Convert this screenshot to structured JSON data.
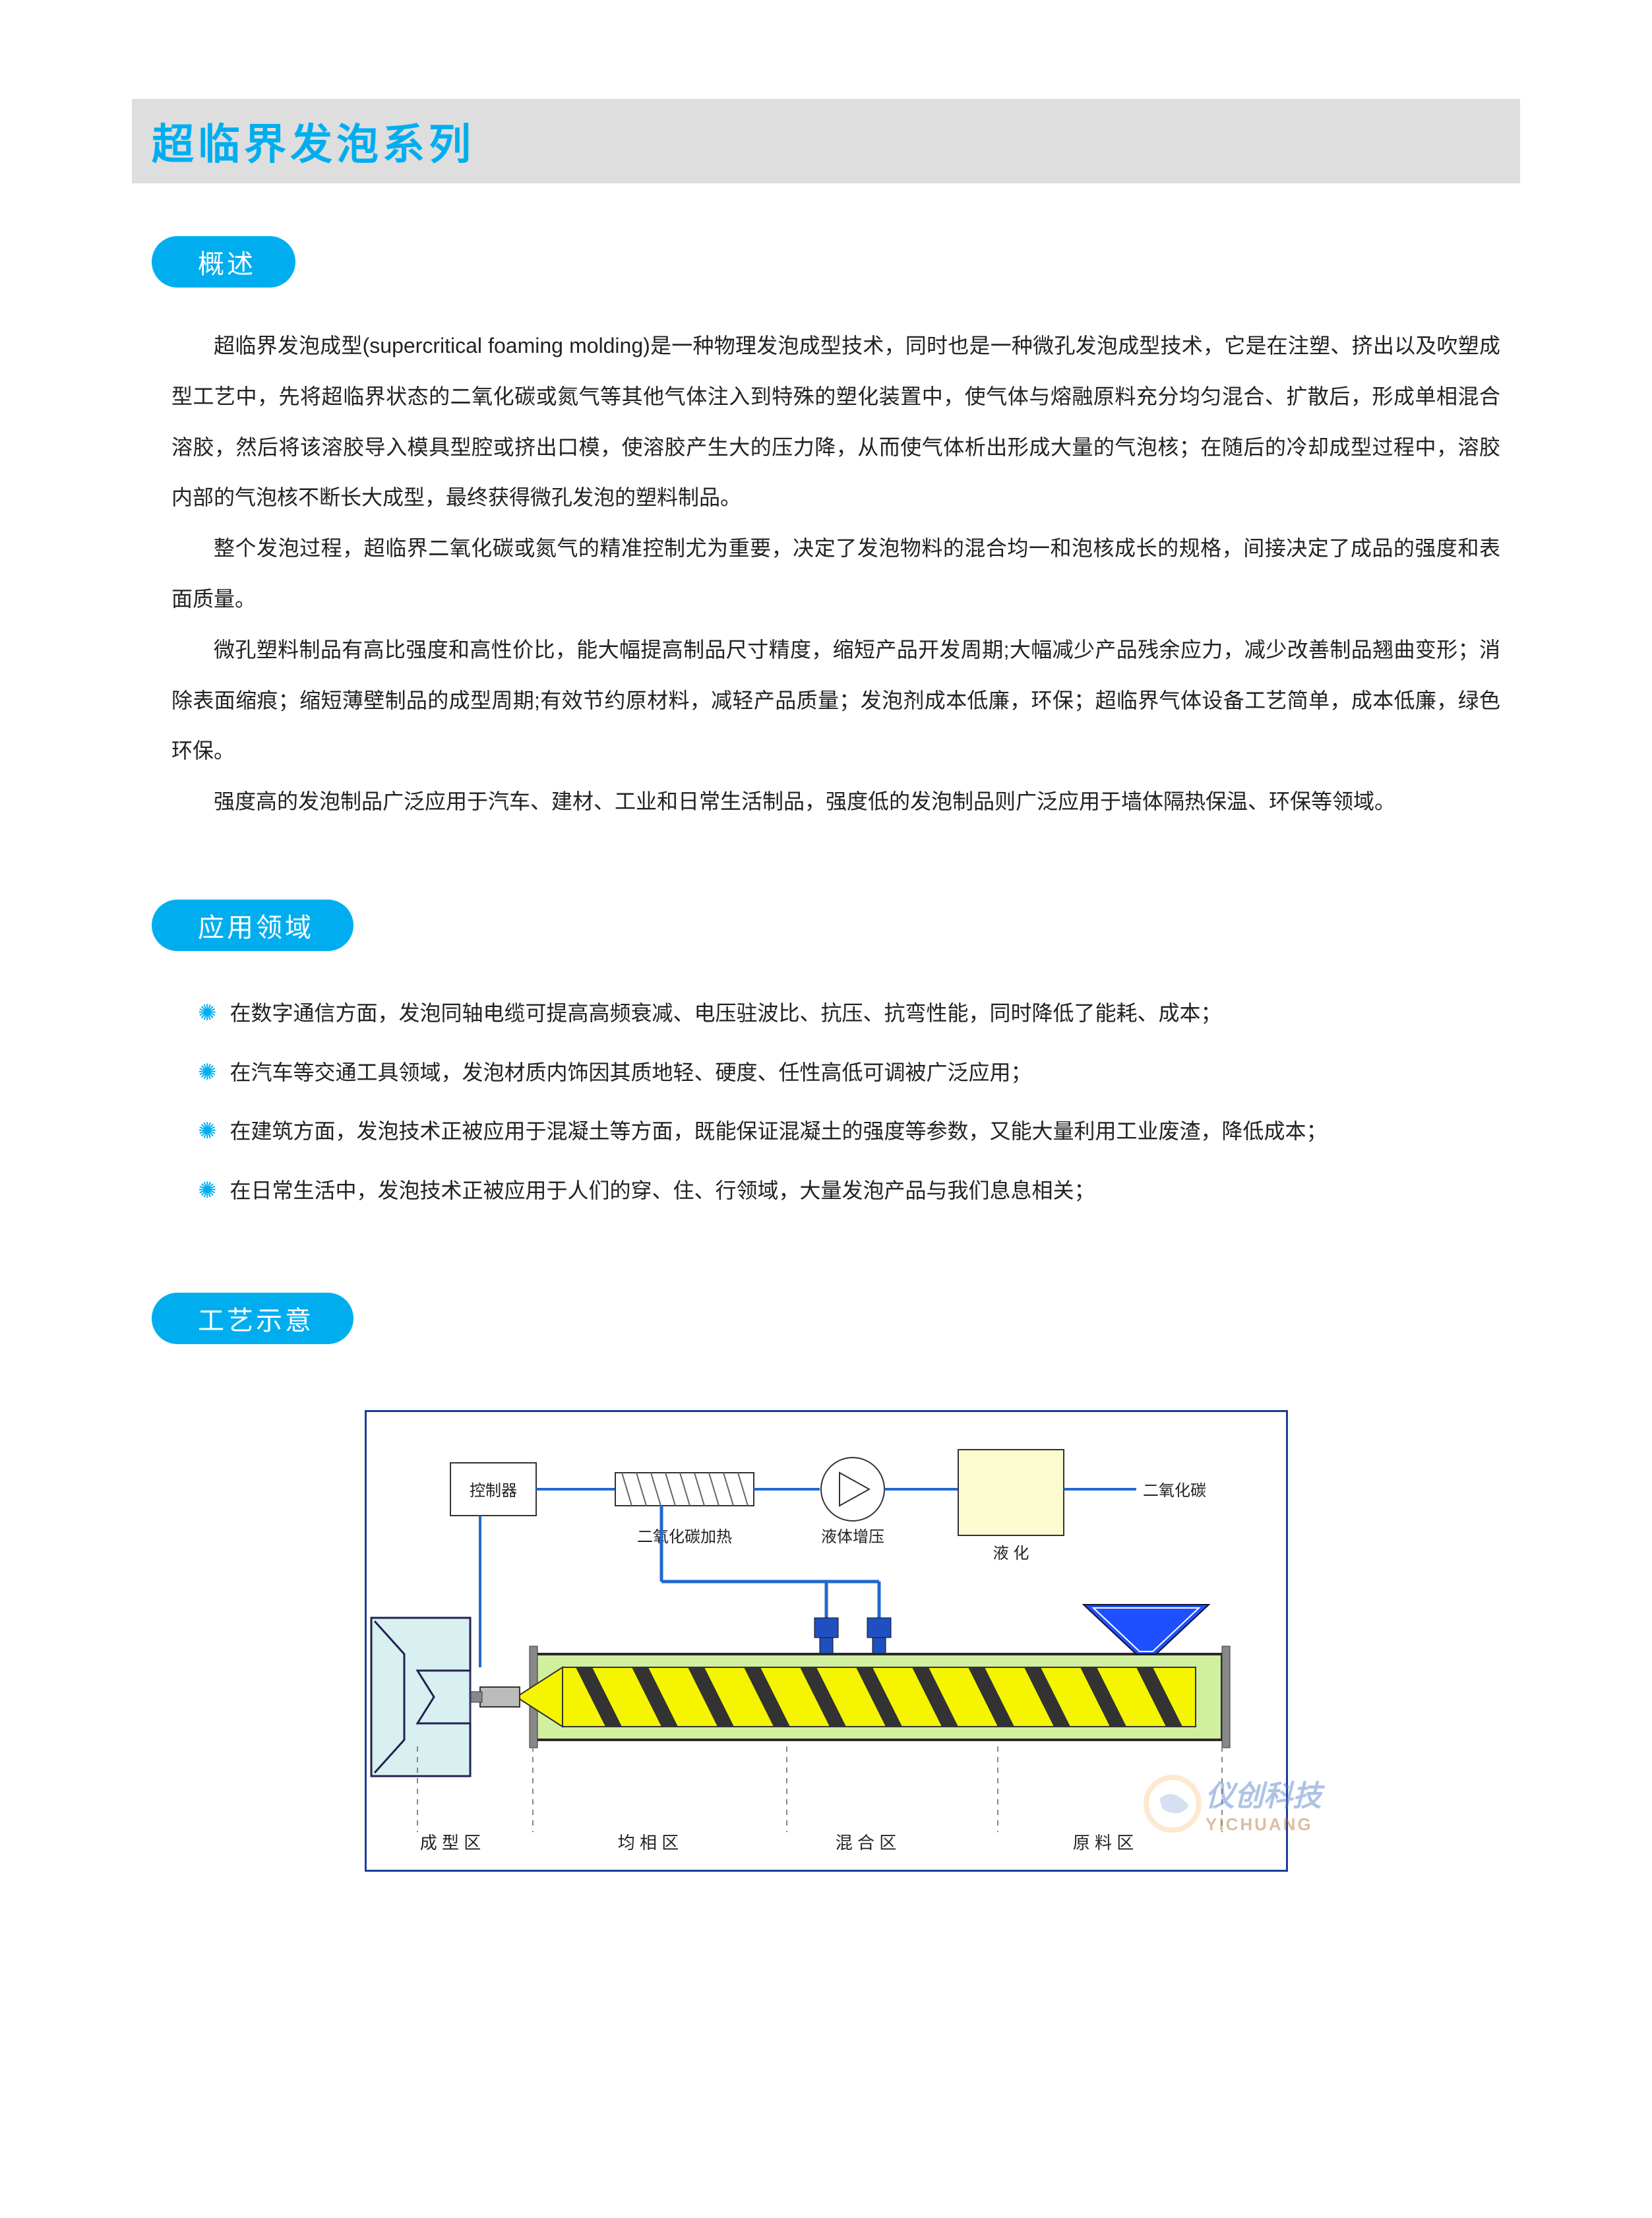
{
  "page": {
    "title": "超临界发泡系列",
    "title_color": "#00aef0",
    "title_bg": "#dedede"
  },
  "sections": {
    "overview": {
      "heading": "概述",
      "paragraphs": [
        "超临界发泡成型(supercritical foaming molding)是一种物理发泡成型技术，同时也是一种微孔发泡成型技术，它是在注塑、挤出以及吹塑成型工艺中，先将超临界状态的二氧化碳或氮气等其他气体注入到特殊的塑化装置中，使气体与熔融原料充分均匀混合、扩散后，形成单相混合溶胶，然后将该溶胶导入模具型腔或挤出口模，使溶胶产生大的压力降，从而使气体析出形成大量的气泡核；在随后的冷却成型过程中，溶胶内部的气泡核不断长大成型，最终获得微孔发泡的塑料制品。",
        "整个发泡过程，超临界二氧化碳或氮气的精准控制尤为重要，决定了发泡物料的混合均一和泡核成长的规格，间接决定了成品的强度和表面质量。",
        "微孔塑料制品有高比强度和高性价比，能大幅提高制品尺寸精度，缩短产品开发周期;大幅减少产品残余应力，减少改善制品翘曲变形；消除表面缩痕；缩短薄壁制品的成型周期;有效节约原材料，减轻产品质量；发泡剂成本低廉，环保；超临界气体设备工艺简单，成本低廉，绿色环保。",
        "强度高的发泡制品广泛应用于汽车、建材、工业和日常生活制品，强度低的发泡制品则广泛应用于墙体隔热保温、环保等领域。"
      ]
    },
    "applications": {
      "heading": "应用领域",
      "items": [
        "在数字通信方面，发泡同轴电缆可提高高频衰减、电压驻波比、抗压、抗弯性能，同时降低了能耗、成本；",
        "在汽车等交通工具领域，发泡材质内饰因其质地轻、硬度、任性高低可调被广泛应用；",
        "在建筑方面，发泡技术正被应用于混凝土等方面，既能保证混凝土的强度等参数，又能大量利用工业废渣，降低成本；",
        "在日常生活中，发泡技术正被应用于人们的穿、住、行领域，大量发泡产品与我们息息相关；"
      ]
    },
    "process": {
      "heading": "工艺示意"
    }
  },
  "diagram": {
    "type": "flowchart",
    "frame_color": "#1a3f9a",
    "bg_color": "#ffffff",
    "screw_fill": "#f5f500",
    "barrel_fill": "#d0f0a0",
    "mold_fill": "#d8f0f0",
    "hopper_fill": "#1e50ff",
    "co2_box_fill": "#fbfbd0",
    "line_color": "#2068d0",
    "dashed_color": "#888888",
    "text_color": "#222222",
    "font_size_label": 24,
    "font_size_zone": 26,
    "upper_labels": {
      "controller": "控制器",
      "heater": "二氧化碳加热",
      "pump": "液体增压",
      "liquefy": "液  化",
      "co2": "二氧化碳"
    },
    "lower_zones": [
      "成 型 区",
      "均 相 区",
      "混 合 区",
      "原 料 区"
    ],
    "zone_x": [
      130,
      430,
      760,
      1120
    ],
    "dashed_x": [
      80,
      255,
      640,
      960,
      1300
    ]
  },
  "watermark": {
    "cn": "仪创科技",
    "en": "YICHUANG",
    "color_cn": "#4a7bc8",
    "color_en": "#b07030"
  },
  "colors": {
    "accent": "#00aef0",
    "text": "#222222",
    "pill_bg": "#00aef0",
    "pill_text": "#ffffff",
    "bullet": "#00aef0"
  }
}
